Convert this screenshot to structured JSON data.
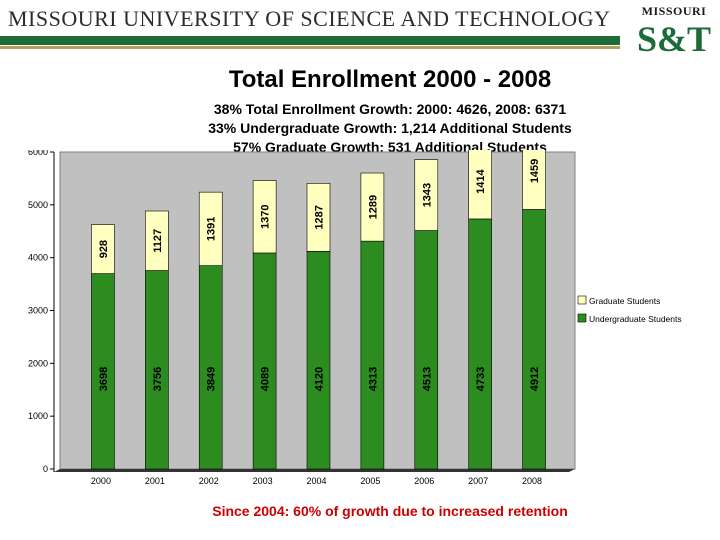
{
  "header": {
    "university_name": "MISSOURI UNIVERSITY OF SCIENCE AND TECHNOLOGY",
    "logo_top": "MISSOURI",
    "logo_main": "S&T",
    "logo_icon": "missouri-st-logo-icon",
    "brand_green": "#1d6b38",
    "brand_gold": "#b5a05a"
  },
  "slide": {
    "title": "Total Enrollment 2000 - 2008",
    "subtitle_lines": [
      "38% Total Enrollment Growth:  2000: 4626, 2008: 6371",
      "33% Undergraduate Growth: 1,214 Additional Students",
      "57% Graduate Growth: 531 Additional Students"
    ],
    "footnote": "Since 2004: 60% of growth due to increased retention"
  },
  "chart_data": {
    "type": "bar",
    "stacked": true,
    "categories": [
      "2000",
      "2001",
      "2002",
      "2003",
      "2004",
      "2005",
      "2006",
      "2007",
      "2008"
    ],
    "series": [
      {
        "name": "Undergraduate Students",
        "color": "#2d8c1f",
        "values": [
          3698,
          3756,
          3849,
          4089,
          4120,
          4313,
          4513,
          4733,
          4912
        ]
      },
      {
        "name": "Graduate Students",
        "color": "#ffffc0",
        "values": [
          928,
          1127,
          1391,
          1370,
          1287,
          1289,
          1343,
          1414,
          1459
        ]
      }
    ],
    "ylim": [
      0,
      6000
    ],
    "yticks": [
      0,
      1000,
      2000,
      3000,
      4000,
      5000,
      6000
    ],
    "grid": false,
    "plot_background": "#c0c0c0",
    "legend_position": "right"
  }
}
